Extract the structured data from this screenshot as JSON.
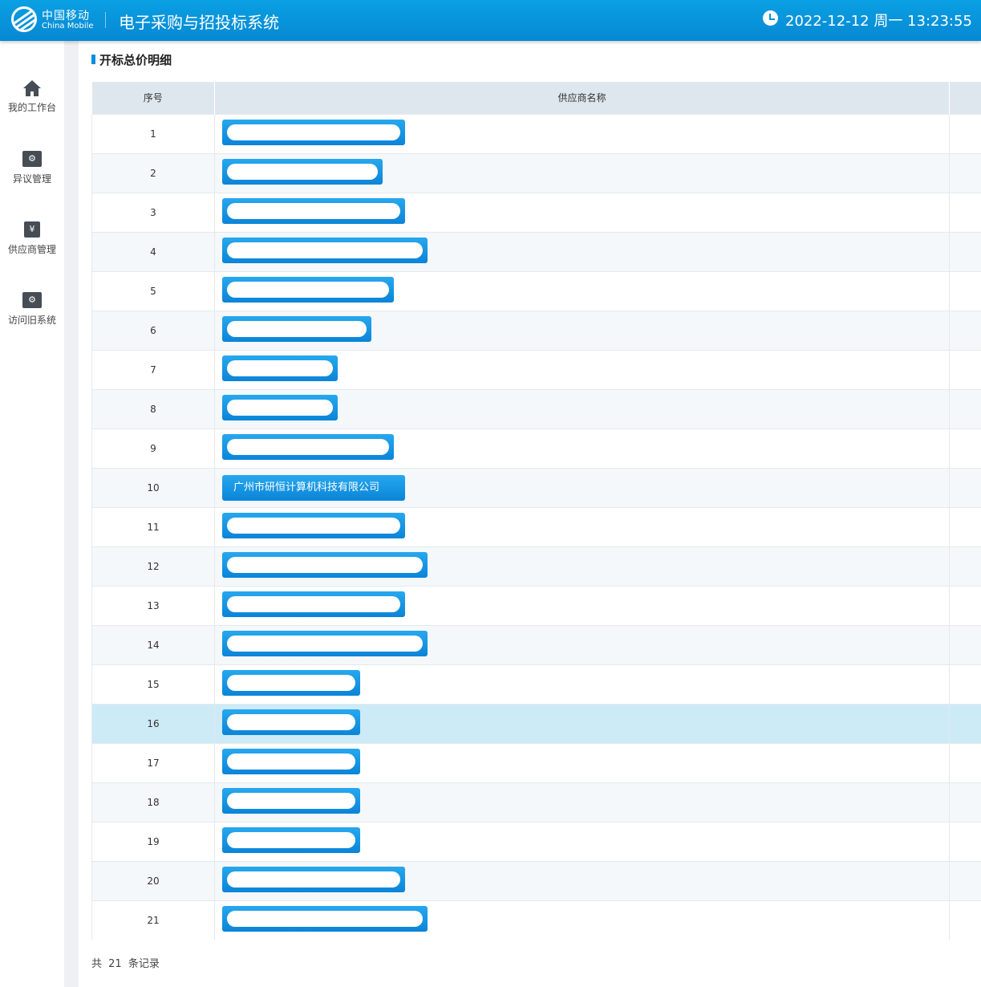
{
  "header": {
    "brand_cn": "中国移动",
    "brand_en": "China Mobile",
    "system_title": "电子采购与招投标系统",
    "clock_icon": "clock-icon",
    "datetime": "2022-12-12 周一 13:23:55"
  },
  "sidebar": {
    "items": [
      {
        "label": "我的工作台",
        "icon": "home-icon"
      },
      {
        "label": "异议管理",
        "icon": "gear-monitor-icon"
      },
      {
        "label": "供应商管理",
        "icon": "yen-document-icon"
      },
      {
        "label": "访问旧系统",
        "icon": "gear-monitor-icon"
      }
    ]
  },
  "section_title": "开标总价明细",
  "table": {
    "columns": [
      "序号",
      "供应商名称",
      ""
    ],
    "rows": [
      {
        "seq": "1",
        "name": ""
      },
      {
        "seq": "2",
        "name": ""
      },
      {
        "seq": "3",
        "name": ""
      },
      {
        "seq": "4",
        "name": ""
      },
      {
        "seq": "5",
        "name": ""
      },
      {
        "seq": "6",
        "name": ""
      },
      {
        "seq": "7",
        "name": ""
      },
      {
        "seq": "8",
        "name": ""
      },
      {
        "seq": "9",
        "name": ""
      },
      {
        "seq": "10",
        "name": "广州市研恒计算机科技有限公司"
      },
      {
        "seq": "11",
        "name": ""
      },
      {
        "seq": "12",
        "name": ""
      },
      {
        "seq": "13",
        "name": ""
      },
      {
        "seq": "14",
        "name": ""
      },
      {
        "seq": "15",
        "name": ""
      },
      {
        "seq": "16",
        "name": "",
        "selected": true
      },
      {
        "seq": "17",
        "name": ""
      },
      {
        "seq": "18",
        "name": ""
      },
      {
        "seq": "19",
        "name": ""
      },
      {
        "seq": "20",
        "name": ""
      },
      {
        "seq": "21",
        "name": ""
      }
    ]
  },
  "footer": {
    "prefix": "共",
    "count": "21",
    "suffix": "条记录"
  },
  "colors": {
    "header_blue": "#0891d8",
    "button_blue": "#1a9be6",
    "selected_row": "#cdeaf7"
  }
}
